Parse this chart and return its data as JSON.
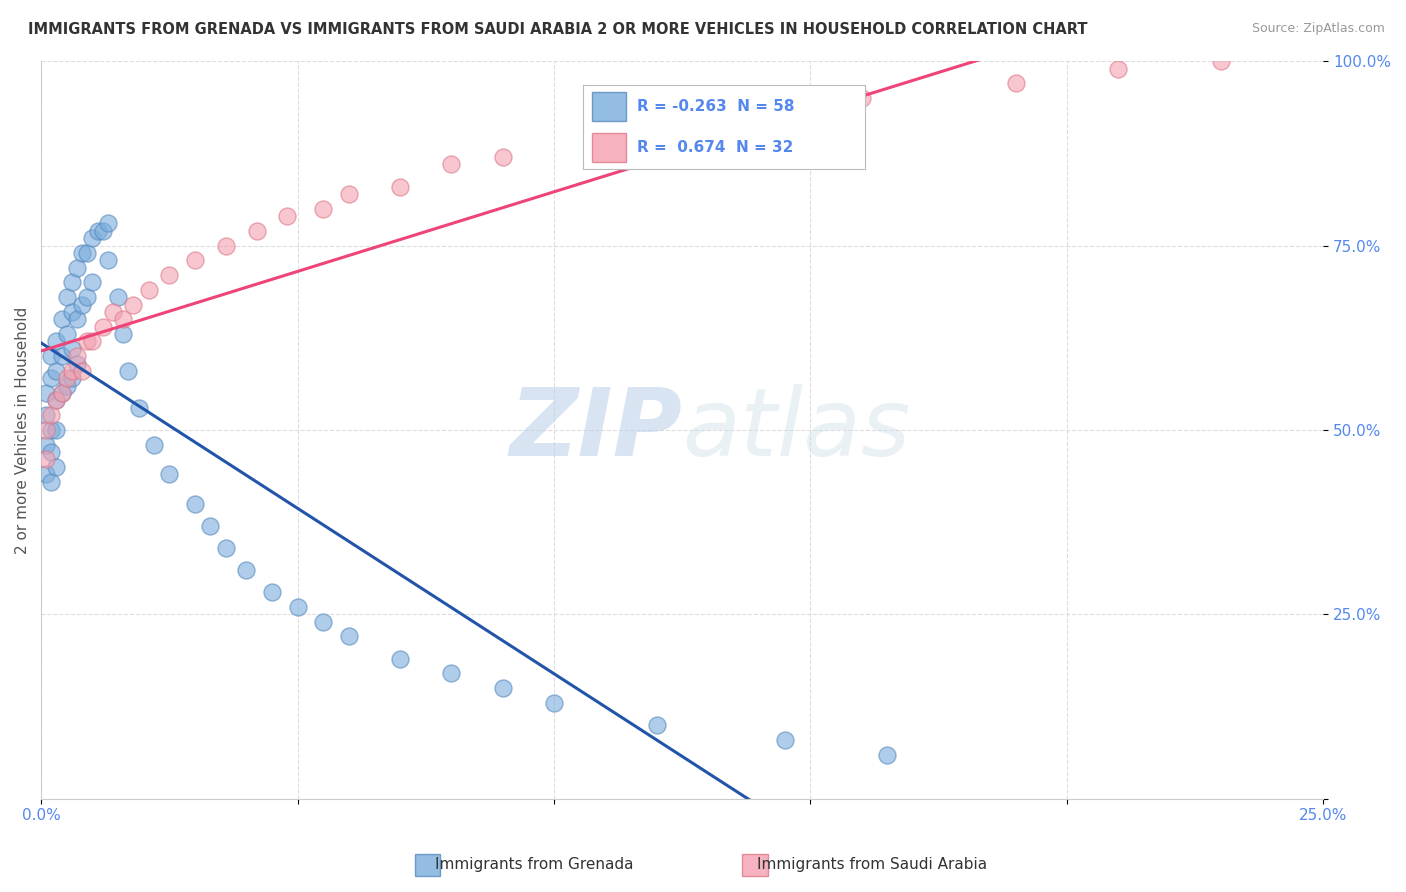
{
  "title": "IMMIGRANTS FROM GRENADA VS IMMIGRANTS FROM SAUDI ARABIA 2 OR MORE VEHICLES IN HOUSEHOLD CORRELATION CHART",
  "source": "Source: ZipAtlas.com",
  "ylabel": "2 or more Vehicles in Household",
  "xlim": [
    0.0,
    0.25
  ],
  "ylim": [
    0.0,
    1.0
  ],
  "xticks": [
    0.0,
    0.05,
    0.1,
    0.15,
    0.2,
    0.25
  ],
  "yticks": [
    0.0,
    0.25,
    0.5,
    0.75,
    1.0
  ],
  "xticklabels_bottom": [
    "0.0%",
    "",
    "",
    "",
    "",
    "25.0%"
  ],
  "yticklabels_right": [
    "",
    "25.0%",
    "50.0%",
    "75.0%",
    "100.0%"
  ],
  "grenada_color": "#7aaddc",
  "grenada_edge": "#5588bb",
  "saudi_color": "#f4a0b0",
  "saudi_edge": "#dd7788",
  "blue_line_color": "#2255aa",
  "pink_line_color": "#ee4477",
  "dash_line_color": "#aabbcc",
  "grenada_label": "Immigrants from Grenada",
  "saudi_label": "Immigrants from Saudi Arabia",
  "grenada_R": -0.263,
  "grenada_N": 58,
  "saudi_R": 0.674,
  "saudi_N": 32,
  "watermark_zip": "ZIP",
  "watermark_atlas": "atlas",
  "background_color": "#ffffff",
  "grid_color": "#dddddd",
  "tick_color": "#5588ee",
  "grenada_x": [
    0.001,
    0.001,
    0.001,
    0.001,
    0.002,
    0.002,
    0.002,
    0.002,
    0.002,
    0.003,
    0.003,
    0.003,
    0.003,
    0.003,
    0.004,
    0.004,
    0.004,
    0.005,
    0.005,
    0.005,
    0.006,
    0.006,
    0.006,
    0.006,
    0.007,
    0.007,
    0.007,
    0.008,
    0.008,
    0.009,
    0.009,
    0.01,
    0.01,
    0.011,
    0.012,
    0.013,
    0.013,
    0.015,
    0.016,
    0.017,
    0.019,
    0.022,
    0.025,
    0.03,
    0.033,
    0.036,
    0.04,
    0.045,
    0.05,
    0.055,
    0.06,
    0.07,
    0.08,
    0.09,
    0.1,
    0.12,
    0.145,
    0.165
  ],
  "grenada_y": [
    0.52,
    0.48,
    0.55,
    0.44,
    0.6,
    0.57,
    0.5,
    0.47,
    0.43,
    0.62,
    0.58,
    0.54,
    0.5,
    0.45,
    0.65,
    0.6,
    0.55,
    0.68,
    0.63,
    0.56,
    0.7,
    0.66,
    0.61,
    0.57,
    0.72,
    0.65,
    0.59,
    0.74,
    0.67,
    0.74,
    0.68,
    0.76,
    0.7,
    0.77,
    0.77,
    0.78,
    0.73,
    0.68,
    0.63,
    0.58,
    0.53,
    0.48,
    0.44,
    0.4,
    0.37,
    0.34,
    0.31,
    0.28,
    0.26,
    0.24,
    0.22,
    0.19,
    0.17,
    0.15,
    0.13,
    0.1,
    0.08,
    0.06
  ],
  "saudi_x": [
    0.001,
    0.001,
    0.002,
    0.003,
    0.004,
    0.005,
    0.006,
    0.007,
    0.008,
    0.009,
    0.01,
    0.012,
    0.014,
    0.016,
    0.018,
    0.021,
    0.025,
    0.03,
    0.036,
    0.042,
    0.048,
    0.055,
    0.06,
    0.07,
    0.08,
    0.09,
    0.11,
    0.13,
    0.16,
    0.19,
    0.21,
    0.23
  ],
  "saudi_y": [
    0.5,
    0.46,
    0.52,
    0.54,
    0.55,
    0.57,
    0.58,
    0.6,
    0.58,
    0.62,
    0.62,
    0.64,
    0.66,
    0.65,
    0.67,
    0.69,
    0.71,
    0.73,
    0.75,
    0.77,
    0.79,
    0.8,
    0.82,
    0.83,
    0.86,
    0.87,
    0.89,
    0.92,
    0.95,
    0.97,
    0.99,
    1.0
  ]
}
